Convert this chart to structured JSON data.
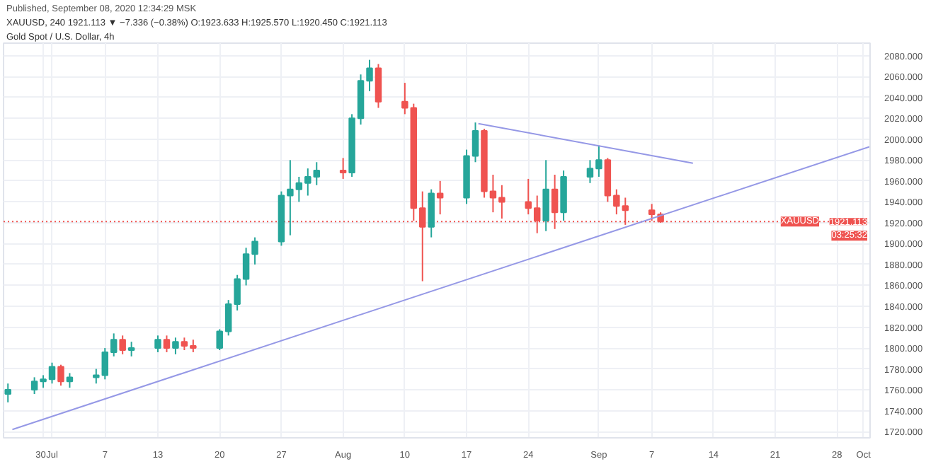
{
  "chart_data": {
    "type": "candlestick",
    "title": "Gold Spot / U.S. Dollar, 4h",
    "subtitle": "Published, September 08, 2020 12:34:29 MSK",
    "annotations": [
      "XAUUSD, 240 1921.113 ▼ −7.336 (−0.38%) O:1923.633 H:1925.570 L:1920.450 C:1921.113",
      "XAUUSD",
      "03:25:32"
    ],
    "xlim": [
      "2020-06-25T12:00",
      "2020-10-01T18:00"
    ],
    "ylim": [
      1714,
      2092
    ],
    "xticks": [
      {
        "value": "2020-06-30",
        "label": "30"
      },
      {
        "value": "2020-07-01",
        "label": "Jul"
      },
      {
        "value": "2020-07-07",
        "label": "7"
      },
      {
        "value": "2020-07-13",
        "label": "13"
      },
      {
        "value": "2020-07-20",
        "label": "20"
      },
      {
        "value": "2020-07-27",
        "label": "27"
      },
      {
        "value": "2020-08-03",
        "label": "Aug"
      },
      {
        "value": "2020-08-10",
        "label": "10"
      },
      {
        "value": "2020-08-17",
        "label": "17"
      },
      {
        "value": "2020-08-24",
        "label": "24"
      },
      {
        "value": "2020-09-01",
        "label": "Sep"
      },
      {
        "value": "2020-09-07",
        "label": "7"
      },
      {
        "value": "2020-09-14",
        "label": "14"
      },
      {
        "value": "2020-09-21",
        "label": "21"
      },
      {
        "value": "2020-09-28",
        "label": "28"
      },
      {
        "value": "2020-10-01",
        "label": "Oct"
      }
    ],
    "yticks": [
      {
        "value": 1720,
        "label": "1720.000"
      },
      {
        "value": 1740,
        "label": "1740.000"
      },
      {
        "value": 1760,
        "label": "1760.000"
      },
      {
        "value": 1780,
        "label": "1780.000"
      },
      {
        "value": 1800,
        "label": "1800.000"
      },
      {
        "value": 1820,
        "label": "1820.000"
      },
      {
        "value": 1840,
        "label": "1840.000"
      },
      {
        "value": 1860,
        "label": "1860.000"
      },
      {
        "value": 1880,
        "label": "1880.000"
      },
      {
        "value": 1900,
        "label": "1900.000"
      },
      {
        "value": 1920,
        "label": "1920.000"
      },
      {
        "value": 1940,
        "label": "1940.000"
      },
      {
        "value": 1960,
        "label": "1960.000"
      },
      {
        "value": 1980,
        "label": "1980.000"
      },
      {
        "value": 2000,
        "label": "2000.000"
      },
      {
        "value": 2020,
        "label": "2020.000"
      },
      {
        "value": 2040,
        "label": "2040.000"
      },
      {
        "value": 2060,
        "label": "2060.000"
      },
      {
        "value": 2080,
        "label": "2080.000"
      }
    ],
    "grid": true,
    "ref_lines": [
      {
        "axis": "y",
        "value": 1921.113,
        "label": "1921.113",
        "color": "#ef5350",
        "line_style": "dotted"
      }
    ],
    "series": [
      {
        "colors": [
          "#26a69a",
          "#26a69a",
          "#26a69a",
          "#26a69a",
          "#ef5350",
          "#26a69a",
          "#26a69a",
          "#26a69a",
          "#26a69a",
          "#ef5350",
          "#26a69a",
          "#26a69a",
          "#ef5350",
          "#26a69a",
          "#ef5350",
          "#ef5350",
          "#26a69a",
          "#26a69a",
          "#26a69a",
          "#26a69a",
          "#26a69a",
          "#26a69a",
          "#26a69a",
          "#26a69a",
          "#26a69a",
          "#26a69a",
          "#ef5350",
          "#26a69a",
          "#26a69a",
          "#26a69a",
          "#ef5350",
          "#ef5350",
          "#ef5350",
          "#ef5350",
          "#26a69a",
          "#ef5350",
          "#26a69a",
          "#26a69a",
          "#ef5350",
          "#ef5350",
          "#ef5350",
          "#ef5350",
          "#ef5350",
          "#26a69a",
          "#ef5350",
          "#26a69a",
          "#26a69a",
          "#26a69a",
          "#ef5350",
          "#ef5350",
          "#ef5350",
          "#ef5350",
          "#ef5350"
        ],
        "x": [
          "2020-06-26",
          "2020-06-29",
          "2020-06-30",
          "2020-07-01",
          "2020-07-02",
          "2020-07-03",
          "2020-07-06",
          "2020-07-07",
          "2020-07-08",
          "2020-07-09",
          "2020-07-10",
          "2020-07-13",
          "2020-07-14",
          "2020-07-15",
          "2020-07-16",
          "2020-07-17",
          "2020-07-20",
          "2020-07-21",
          "2020-07-22",
          "2020-07-23",
          "2020-07-24",
          "2020-07-27",
          "2020-07-28",
          "2020-07-29",
          "2020-07-30",
          "2020-07-31",
          "2020-08-03",
          "2020-08-04",
          "2020-08-05",
          "2020-08-06",
          "2020-08-07",
          "2020-08-10",
          "2020-08-11",
          "2020-08-12",
          "2020-08-13",
          "2020-08-14",
          "2020-08-17",
          "2020-08-18",
          "2020-08-19",
          "2020-08-20",
          "2020-08-21",
          "2020-08-24",
          "2020-08-25",
          "2020-08-26",
          "2020-08-27",
          "2020-08-28",
          "2020-08-31",
          "2020-09-01",
          "2020-09-02",
          "2020-09-03",
          "2020-09-04",
          "2020-09-07",
          "2020-09-08"
        ],
        "ohlc": [
          [
            1756,
            1766,
            1748,
            1760
          ],
          [
            1760,
            1772,
            1756,
            1768
          ],
          [
            1768,
            1774,
            1762,
            1770
          ],
          [
            1770,
            1786,
            1766,
            1782
          ],
          [
            1782,
            1784,
            1764,
            1768
          ],
          [
            1768,
            1776,
            1762,
            1772
          ],
          [
            1772,
            1780,
            1766,
            1774
          ],
          [
            1774,
            1800,
            1770,
            1796
          ],
          [
            1796,
            1814,
            1792,
            1808
          ],
          [
            1808,
            1812,
            1794,
            1798
          ],
          [
            1798,
            1806,
            1792,
            1800
          ],
          [
            1800,
            1812,
            1796,
            1808
          ],
          [
            1808,
            1812,
            1796,
            1800
          ],
          [
            1800,
            1810,
            1794,
            1806
          ],
          [
            1806,
            1810,
            1798,
            1802
          ],
          [
            1802,
            1808,
            1796,
            1800
          ],
          [
            1800,
            1818,
            1798,
            1816
          ],
          [
            1816,
            1846,
            1812,
            1842
          ],
          [
            1842,
            1870,
            1836,
            1866
          ],
          [
            1866,
            1896,
            1860,
            1890
          ],
          [
            1890,
            1906,
            1880,
            1902
          ],
          [
            1902,
            1950,
            1898,
            1946
          ],
          [
            1946,
            1980,
            1908,
            1952
          ],
          [
            1952,
            1964,
            1940,
            1958
          ],
          [
            1958,
            1972,
            1946,
            1964
          ],
          [
            1964,
            1978,
            1956,
            1970
          ],
          [
            1970,
            1982,
            1962,
            1968
          ],
          [
            1968,
            2024,
            1964,
            2020
          ],
          [
            2020,
            2062,
            2014,
            2056
          ],
          [
            2056,
            2076,
            2046,
            2068
          ],
          [
            2068,
            2072,
            2030,
            2036
          ],
          [
            2036,
            2054,
            2024,
            2030
          ],
          [
            2030,
            2034,
            1922,
            1934
          ],
          [
            1934,
            1950,
            1864,
            1916
          ],
          [
            1916,
            1952,
            1906,
            1948
          ],
          [
            1948,
            1960,
            1928,
            1944
          ],
          [
            1944,
            1990,
            1938,
            1984
          ],
          [
            1984,
            2016,
            1978,
            2008
          ],
          [
            2008,
            2010,
            1944,
            1950
          ],
          [
            1950,
            1966,
            1930,
            1944
          ],
          [
            1944,
            1956,
            1924,
            1940
          ],
          [
            1940,
            1962,
            1928,
            1934
          ],
          [
            1934,
            1946,
            1910,
            1922
          ],
          [
            1922,
            1980,
            1912,
            1952
          ],
          [
            1952,
            1966,
            1914,
            1930
          ],
          [
            1930,
            1970,
            1922,
            1964
          ],
          [
            1964,
            1980,
            1958,
            1972
          ],
          [
            1972,
            1994,
            1964,
            1980
          ],
          [
            1980,
            1982,
            1940,
            1946
          ],
          [
            1946,
            1952,
            1928,
            1936
          ],
          [
            1936,
            1944,
            1918,
            1932
          ],
          [
            1932,
            1938,
            1922,
            1928
          ],
          [
            1928,
            1930,
            1920,
            1921.113
          ]
        ]
      },
      {
        "type": "line",
        "color": "#9598e6",
        "x": [
          "2020-06-26T12:00",
          "2020-10-01T18:00"
        ],
        "values": [
          1722,
          1993
        ]
      },
      {
        "type": "line",
        "color": "#9598e6",
        "x": [
          "2020-08-18T08:00",
          "2020-09-11T16:00"
        ],
        "values": [
          2015,
          1977
        ]
      }
    ]
  }
}
